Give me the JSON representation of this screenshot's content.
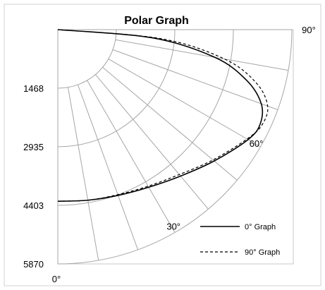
{
  "chart_data": {
    "type": "polar-line",
    "title": "Polar Graph",
    "radial_ticks": [
      "1468",
      "2935",
      "4403",
      "5870"
    ],
    "radial_max": 5870,
    "angle_range": [
      0,
      90
    ],
    "angle_labels": [
      {
        "angle": 0,
        "label": "0°"
      },
      {
        "angle": 30,
        "label": "30°"
      },
      {
        "angle": 60,
        "label": "60°"
      },
      {
        "angle": 90,
        "label": "90°"
      }
    ],
    "grid": {
      "radial_lines_every_deg": 10,
      "rings": [
        1468,
        2935,
        4403,
        5870
      ]
    },
    "legend": {
      "position": "bottom-right",
      "entries": [
        {
          "label": "0° Graph",
          "style": "solid"
        },
        {
          "label": "90° Graph",
          "style": "dashed"
        }
      ]
    },
    "series": [
      {
        "name": "0° Graph",
        "style": "solid",
        "points": [
          {
            "angle": 0,
            "r": 4300
          },
          {
            "angle": 10,
            "r": 4340
          },
          {
            "angle": 20,
            "r": 4420
          },
          {
            "angle": 30,
            "r": 4560
          },
          {
            "angle": 40,
            "r": 4790
          },
          {
            "angle": 50,
            "r": 5120
          },
          {
            "angle": 60,
            "r": 5510
          },
          {
            "angle": 65,
            "r": 5600
          },
          {
            "angle": 70,
            "r": 5430
          },
          {
            "angle": 75,
            "r": 4900
          },
          {
            "angle": 80,
            "r": 4000
          },
          {
            "angle": 85,
            "r": 2400
          },
          {
            "angle": 90,
            "r": 0
          }
        ]
      },
      {
        "name": "90° Graph",
        "style": "dashed",
        "points": [
          {
            "angle": 0,
            "r": 4300
          },
          {
            "angle": 10,
            "r": 4340
          },
          {
            "angle": 20,
            "r": 4400
          },
          {
            "angle": 30,
            "r": 4530
          },
          {
            "angle": 40,
            "r": 4740
          },
          {
            "angle": 50,
            "r": 5080
          },
          {
            "angle": 60,
            "r": 5480
          },
          {
            "angle": 65,
            "r": 5650
          },
          {
            "angle": 70,
            "r": 5600
          },
          {
            "angle": 75,
            "r": 5150
          },
          {
            "angle": 80,
            "r": 4250
          },
          {
            "angle": 85,
            "r": 2600
          },
          {
            "angle": 90,
            "r": 0
          }
        ]
      }
    ],
    "colors": {
      "grid": "#a6a6a6",
      "frame": "#c8c8c8",
      "series": "#000000",
      "background": "#ffffff"
    }
  }
}
